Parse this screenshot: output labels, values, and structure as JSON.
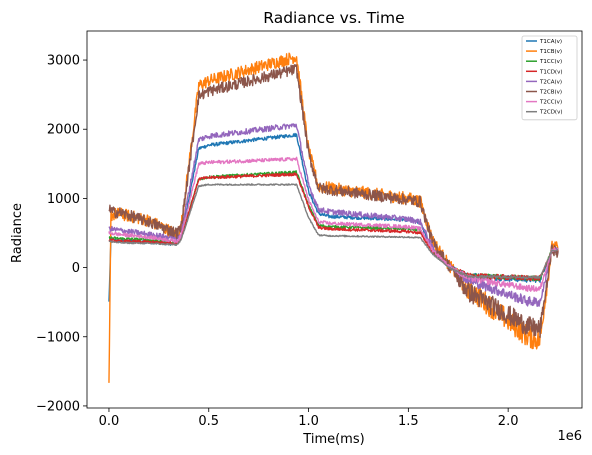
{
  "chart_data": {
    "type": "line",
    "title": "Radiance vs. Time",
    "xlabel": "Time(ms)",
    "ylabel": "Radiance",
    "x_multiplier_label": "1e6",
    "xlim": [
      -0.11,
      2.37
    ],
    "ylim": [
      -2030,
      3420
    ],
    "x_ticks": [
      0.0,
      0.5,
      1.0,
      1.5,
      2.0
    ],
    "x_tick_labels": [
      "0.0",
      "0.5",
      "1.0",
      "1.5",
      "2.0"
    ],
    "y_ticks": [
      -2000,
      -1000,
      0,
      1000,
      2000,
      3000
    ],
    "y_tick_labels": [
      "−2000",
      "−1000",
      "0",
      "1000",
      "2000",
      "3000"
    ],
    "grid": false,
    "legend_position": "top-right",
    "series": [
      {
        "name": "T1CA(v)",
        "color": "#1f77b4",
        "noise": 25,
        "points": [
          [
            0.0,
            -500
          ],
          [
            0.01,
            400
          ],
          [
            0.05,
            390
          ],
          [
            0.2,
            370
          ],
          [
            0.34,
            340
          ],
          [
            0.36,
            420
          ],
          [
            0.45,
            1720
          ],
          [
            0.5,
            1770
          ],
          [
            0.94,
            1920
          ],
          [
            1.0,
            1100
          ],
          [
            1.05,
            780
          ],
          [
            1.1,
            740
          ],
          [
            1.5,
            690
          ],
          [
            1.56,
            650
          ],
          [
            1.62,
            250
          ],
          [
            1.7,
            30
          ],
          [
            1.8,
            -120
          ],
          [
            2.1,
            -170
          ],
          [
            2.16,
            -170
          ],
          [
            2.22,
            250
          ],
          [
            2.25,
            260
          ]
        ]
      },
      {
        "name": "T1CB(v)",
        "color": "#ff7f0e",
        "noise": 90,
        "points": [
          [
            0.0,
            -1750
          ],
          [
            0.01,
            760
          ],
          [
            0.05,
            780
          ],
          [
            0.2,
            680
          ],
          [
            0.34,
            480
          ],
          [
            0.36,
            560
          ],
          [
            0.45,
            2630
          ],
          [
            0.5,
            2700
          ],
          [
            0.94,
            3050
          ],
          [
            1.0,
            1700
          ],
          [
            1.05,
            1170
          ],
          [
            1.1,
            1150
          ],
          [
            1.5,
            1000
          ],
          [
            1.56,
            960
          ],
          [
            1.62,
            400
          ],
          [
            1.7,
            50
          ],
          [
            1.8,
            -300
          ],
          [
            2.1,
            -1000
          ],
          [
            2.16,
            -1050
          ],
          [
            2.22,
            300
          ],
          [
            2.25,
            280
          ]
        ]
      },
      {
        "name": "T1CC(v)",
        "color": "#2ca02c",
        "noise": 20,
        "points": [
          [
            0.0,
            430
          ],
          [
            0.05,
            420
          ],
          [
            0.2,
            400
          ],
          [
            0.34,
            360
          ],
          [
            0.36,
            420
          ],
          [
            0.45,
            1280
          ],
          [
            0.5,
            1310
          ],
          [
            0.94,
            1380
          ],
          [
            1.0,
            900
          ],
          [
            1.05,
            610
          ],
          [
            1.1,
            590
          ],
          [
            1.5,
            560
          ],
          [
            1.56,
            540
          ],
          [
            1.62,
            240
          ],
          [
            1.7,
            20
          ],
          [
            1.8,
            -120
          ],
          [
            2.1,
            -150
          ],
          [
            2.16,
            -160
          ],
          [
            2.22,
            260
          ],
          [
            2.25,
            260
          ]
        ]
      },
      {
        "name": "T1CD(v)",
        "color": "#d62728",
        "noise": 20,
        "points": [
          [
            0.0,
            400
          ],
          [
            0.05,
            380
          ],
          [
            0.2,
            370
          ],
          [
            0.34,
            350
          ],
          [
            0.36,
            410
          ],
          [
            0.45,
            1280
          ],
          [
            0.5,
            1300
          ],
          [
            0.94,
            1350
          ],
          [
            1.0,
            880
          ],
          [
            1.05,
            580
          ],
          [
            1.1,
            560
          ],
          [
            1.5,
            520
          ],
          [
            1.56,
            500
          ],
          [
            1.62,
            230
          ],
          [
            1.7,
            20
          ],
          [
            1.8,
            -120
          ],
          [
            2.1,
            -150
          ],
          [
            2.16,
            -150
          ],
          [
            2.22,
            250
          ],
          [
            2.25,
            250
          ]
        ]
      },
      {
        "name": "T2CA(v)",
        "color": "#9467bd",
        "noise": 40,
        "points": [
          [
            0.0,
            560
          ],
          [
            0.05,
            540
          ],
          [
            0.2,
            480
          ],
          [
            0.34,
            420
          ],
          [
            0.36,
            480
          ],
          [
            0.45,
            1850
          ],
          [
            0.5,
            1900
          ],
          [
            0.94,
            2060
          ],
          [
            1.0,
            1200
          ],
          [
            1.05,
            840
          ],
          [
            1.1,
            810
          ],
          [
            1.5,
            700
          ],
          [
            1.56,
            660
          ],
          [
            1.62,
            300
          ],
          [
            1.7,
            40
          ],
          [
            1.8,
            -180
          ],
          [
            2.1,
            -490
          ],
          [
            2.16,
            -500
          ],
          [
            2.22,
            240
          ],
          [
            2.25,
            240
          ]
        ]
      },
      {
        "name": "T2CB(v)",
        "color": "#8c564b",
        "noise": 80,
        "points": [
          [
            0.0,
            850
          ],
          [
            0.02,
            800
          ],
          [
            0.05,
            800
          ],
          [
            0.2,
            660
          ],
          [
            0.34,
            500
          ],
          [
            0.36,
            560
          ],
          [
            0.45,
            2480
          ],
          [
            0.5,
            2550
          ],
          [
            0.94,
            2870
          ],
          [
            1.0,
            1650
          ],
          [
            1.05,
            1150
          ],
          [
            1.1,
            1130
          ],
          [
            1.5,
            980
          ],
          [
            1.56,
            950
          ],
          [
            1.62,
            380
          ],
          [
            1.7,
            40
          ],
          [
            1.8,
            -350
          ],
          [
            2.1,
            -850
          ],
          [
            2.16,
            -900
          ],
          [
            2.22,
            280
          ],
          [
            2.25,
            200
          ]
        ]
      },
      {
        "name": "T2CC(v)",
        "color": "#e377c2",
        "noise": 25,
        "points": [
          [
            0.0,
            500
          ],
          [
            0.05,
            480
          ],
          [
            0.2,
            440
          ],
          [
            0.34,
            380
          ],
          [
            0.36,
            450
          ],
          [
            0.45,
            1500
          ],
          [
            0.5,
            1520
          ],
          [
            0.94,
            1570
          ],
          [
            1.0,
            980
          ],
          [
            1.05,
            660
          ],
          [
            1.1,
            640
          ],
          [
            1.5,
            590
          ],
          [
            1.56,
            560
          ],
          [
            1.62,
            260
          ],
          [
            1.7,
            30
          ],
          [
            1.8,
            -150
          ],
          [
            2.1,
            -300
          ],
          [
            2.16,
            -310
          ],
          [
            2.22,
            260
          ],
          [
            2.25,
            270
          ]
        ]
      },
      {
        "name": "T2CD(v)",
        "color": "#7f7f7f",
        "noise": 10,
        "points": [
          [
            0.0,
            380
          ],
          [
            0.05,
            360
          ],
          [
            0.2,
            350
          ],
          [
            0.34,
            330
          ],
          [
            0.36,
            390
          ],
          [
            0.45,
            1180
          ],
          [
            0.5,
            1200
          ],
          [
            0.94,
            1200
          ],
          [
            1.0,
            720
          ],
          [
            1.05,
            470
          ],
          [
            1.1,
            460
          ],
          [
            1.5,
            440
          ],
          [
            1.56,
            430
          ],
          [
            1.62,
            200
          ],
          [
            1.7,
            10
          ],
          [
            1.8,
            -130
          ],
          [
            2.1,
            -140
          ],
          [
            2.16,
            -140
          ],
          [
            2.22,
            250
          ],
          [
            2.25,
            250
          ]
        ]
      }
    ]
  }
}
